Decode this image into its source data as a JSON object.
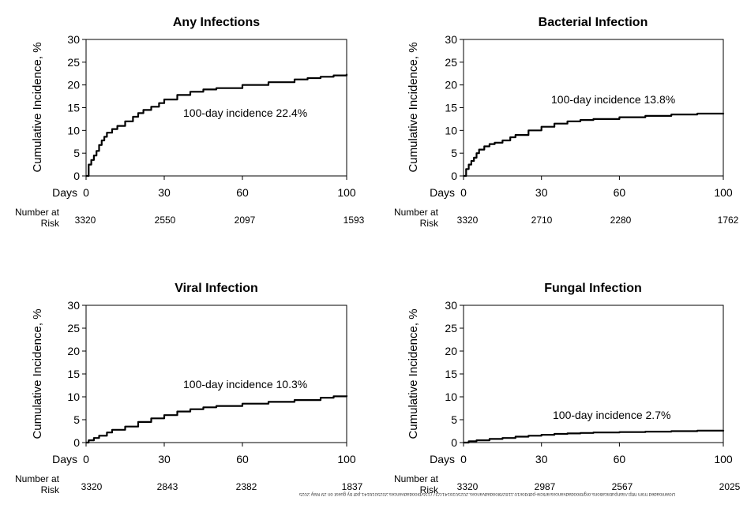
{
  "panels": [
    {
      "title": "Any Infections",
      "ylabel": "Cumulative Incidence, %",
      "annotation": "100-day incidence 22.4%",
      "risk_label_line1": "Number at",
      "risk_label_line2": "Risk",
      "risk_values": [
        "3320",
        "2550",
        "2097",
        "1593"
      ]
    },
    {
      "title": "Bacterial Infection",
      "ylabel": "Cumulative Incidence, %",
      "annotation": "100-day incidence 13.8%",
      "risk_label_line1": "Number at",
      "risk_label_line2": "Risk",
      "risk_values": [
        "3320",
        "2710",
        "2280",
        "1762"
      ]
    },
    {
      "title": "Viral Infection",
      "ylabel": "Cumulative Incidence, %",
      "annotation": "100-day incidence 10.3%",
      "risk_label_line1": "Number at",
      "risk_label_line2": "Risk",
      "risk_values": [
        "3320",
        "2843",
        "2382",
        "1837"
      ]
    },
    {
      "title": "Fungal Infection",
      "ylabel": "Cumulative Incidence, %",
      "annotation": "100-day incidence 2.7%",
      "risk_label_line1": "Number at",
      "risk_label_line2": "Risk",
      "risk_values": [
        "3320",
        "2987",
        "2567",
        "2025"
      ]
    }
  ],
  "watermark": "Downloaded from http://ashpublications.org/bloodadvances/article-pdf/doi/10.1182/bloodadvances.2025016141/2377155/bloodadvances.2025016141.pdf by guest on 29 May 2025",
  "chart_data": [
    {
      "type": "line",
      "title": "Any Infections",
      "xlabel": "Days",
      "ylabel": "Cumulative Incidence, %",
      "xlim": [
        0,
        100
      ],
      "ylim": [
        0,
        30
      ],
      "xticks": [
        0,
        30,
        60,
        100
      ],
      "yticks": [
        0,
        5,
        10,
        15,
        20,
        25,
        30
      ],
      "x": [
        0,
        1,
        2,
        3,
        4,
        5,
        6,
        7,
        8,
        10,
        12,
        15,
        18,
        20,
        22,
        25,
        28,
        30,
        35,
        40,
        45,
        50,
        60,
        70,
        80,
        85,
        90,
        95,
        100
      ],
      "y": [
        0,
        2.5,
        3.5,
        4.5,
        5.5,
        6.8,
        7.8,
        8.6,
        9.5,
        10.3,
        11.0,
        12.0,
        13.0,
        13.8,
        14.5,
        15.2,
        16.0,
        16.8,
        17.8,
        18.5,
        19.0,
        19.3,
        20.0,
        20.6,
        21.2,
        21.5,
        21.8,
        22.1,
        22.4
      ],
      "annotation": "100-day incidence 22.4%",
      "number_at_risk": {
        "days": [
          0,
          30,
          60,
          100
        ],
        "values": [
          3320,
          2550,
          2097,
          1593
        ]
      }
    },
    {
      "type": "line",
      "title": "Bacterial Infection",
      "xlabel": "Days",
      "ylabel": "Cumulative Incidence, %",
      "xlim": [
        0,
        100
      ],
      "ylim": [
        0,
        30
      ],
      "xticks": [
        0,
        30,
        60,
        100
      ],
      "yticks": [
        0,
        5,
        10,
        15,
        20,
        25,
        30
      ],
      "x": [
        0,
        1,
        2,
        3,
        4,
        5,
        6,
        8,
        10,
        12,
        15,
        18,
        20,
        25,
        30,
        35,
        40,
        45,
        50,
        60,
        70,
        80,
        90,
        100
      ],
      "y": [
        0,
        1.5,
        2.5,
        3.3,
        4.0,
        5.0,
        5.8,
        6.5,
        7.0,
        7.3,
        7.8,
        8.5,
        9.0,
        10.0,
        10.8,
        11.5,
        12.0,
        12.3,
        12.5,
        12.9,
        13.2,
        13.5,
        13.7,
        13.8
      ],
      "annotation": "100-day incidence 13.8%",
      "number_at_risk": {
        "days": [
          0,
          30,
          60,
          100
        ],
        "values": [
          3320,
          2710,
          2280,
          1762
        ]
      }
    },
    {
      "type": "line",
      "title": "Viral Infection",
      "xlabel": "Days",
      "ylabel": "Cumulative Incidence, %",
      "xlim": [
        0,
        100
      ],
      "ylim": [
        0,
        30
      ],
      "xticks": [
        0,
        30,
        60,
        100
      ],
      "yticks": [
        0,
        5,
        10,
        15,
        20,
        25,
        30
      ],
      "x": [
        0,
        1,
        3,
        5,
        8,
        10,
        15,
        20,
        25,
        30,
        35,
        40,
        45,
        50,
        60,
        70,
        80,
        90,
        95,
        100
      ],
      "y": [
        0,
        0.5,
        1.0,
        1.5,
        2.2,
        2.8,
        3.5,
        4.5,
        5.3,
        6.0,
        6.8,
        7.3,
        7.7,
        8.0,
        8.5,
        8.9,
        9.3,
        9.8,
        10.1,
        10.3
      ],
      "annotation": "100-day incidence 10.3%",
      "number_at_risk": {
        "days": [
          0,
          30,
          60,
          100
        ],
        "values": [
          3320,
          2843,
          2382,
          1837
        ]
      }
    },
    {
      "type": "line",
      "title": "Fungal Infection",
      "xlabel": "Days",
      "ylabel": "Cumulative Incidence, %",
      "xlim": [
        0,
        100
      ],
      "ylim": [
        0,
        30
      ],
      "xticks": [
        0,
        30,
        60,
        100
      ],
      "yticks": [
        0,
        5,
        10,
        15,
        20,
        25,
        30
      ],
      "x": [
        0,
        2,
        5,
        10,
        15,
        20,
        25,
        30,
        35,
        40,
        45,
        50,
        60,
        70,
        80,
        90,
        100
      ],
      "y": [
        0,
        0.3,
        0.5,
        0.8,
        1.0,
        1.3,
        1.5,
        1.7,
        1.9,
        2.0,
        2.1,
        2.2,
        2.3,
        2.4,
        2.5,
        2.6,
        2.7
      ],
      "annotation": "100-day incidence 2.7%",
      "number_at_risk": {
        "days": [
          0,
          30,
          60,
          100
        ],
        "values": [
          3320,
          2987,
          2567,
          2025
        ]
      }
    }
  ]
}
